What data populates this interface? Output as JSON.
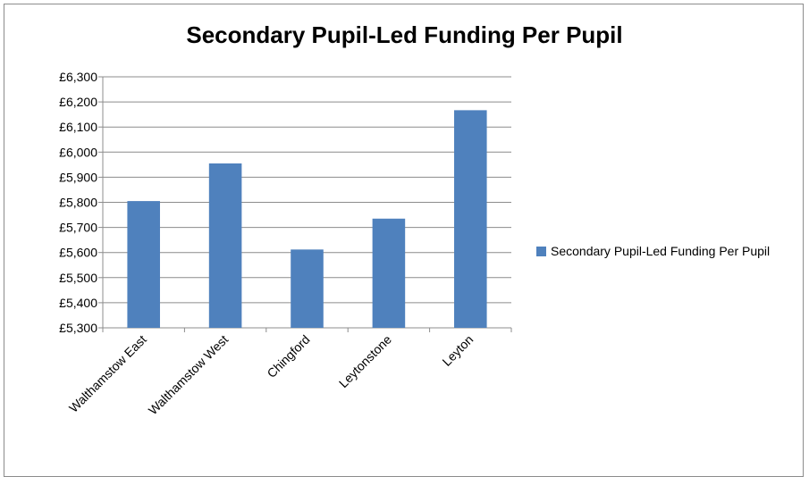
{
  "chart_data": {
    "type": "bar",
    "title": "Secondary Pupil-Led Funding Per Pupil",
    "categories": [
      "Walthamstow East",
      "Walthamstow West",
      "Chingford",
      "Leytonstone",
      "Leyton"
    ],
    "series": [
      {
        "name": "Secondary Pupil-Led Funding Per Pupil",
        "values": [
          5805,
          5955,
          5612,
          5735,
          6167
        ],
        "color": "#4f81bd"
      }
    ],
    "ylim": [
      5300,
      6300
    ],
    "yticks": [
      5300,
      5400,
      5500,
      5600,
      5700,
      5800,
      5900,
      6000,
      6100,
      6200,
      6300
    ],
    "ytick_labels": [
      "£5,300",
      "£5,400",
      "£5,500",
      "£5,600",
      "£5,700",
      "£5,800",
      "£5,900",
      "£6,000",
      "£6,100",
      "£6,200",
      "£6,300"
    ],
    "xlabel": "",
    "ylabel": "",
    "grid": true,
    "legend_position": "right"
  }
}
